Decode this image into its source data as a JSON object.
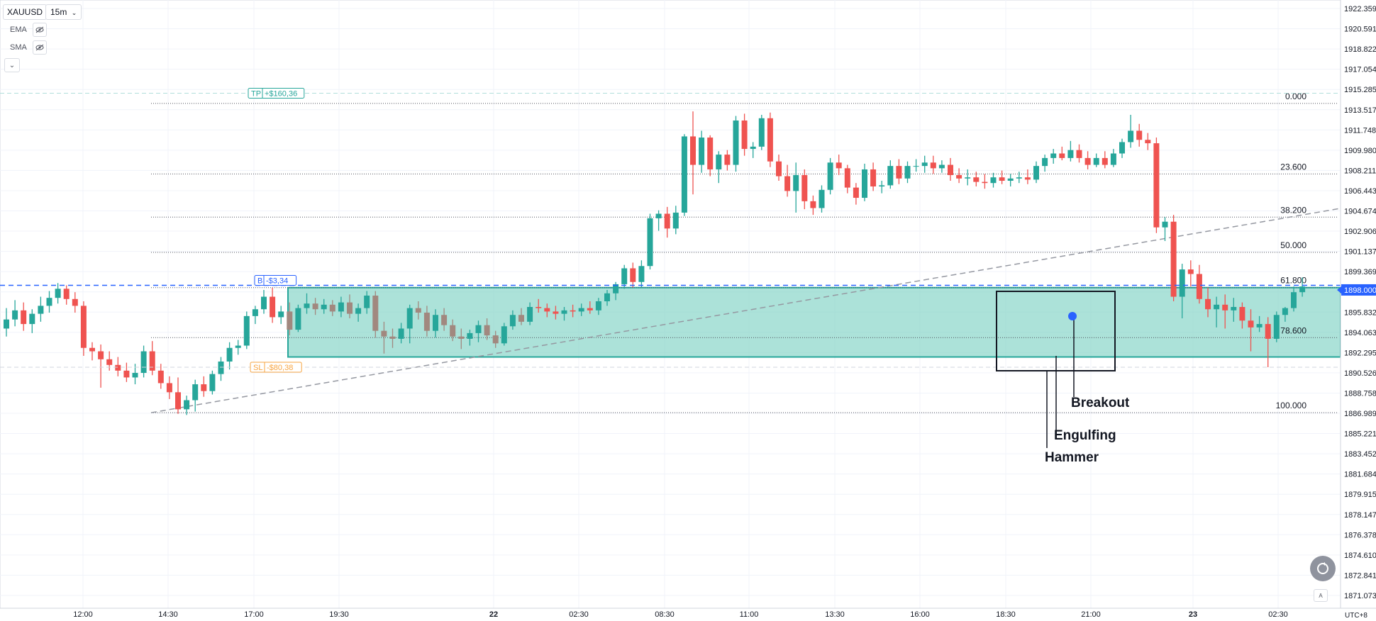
{
  "toolbar": {
    "symbol": "XAUUSD",
    "timeframe": "15m",
    "indicators": [
      {
        "label": "EMA",
        "icon": "eye-off-icon"
      },
      {
        "label": "SMA",
        "icon": "eye-off-icon"
      }
    ],
    "collapse_icon": "chevron-down-icon"
  },
  "timezone_label": "UTC+8",
  "auto_scale_label": "A",
  "colors": {
    "up": "#26a69a",
    "down": "#ef5350",
    "zone_fill": "#7fd3c5",
    "zone_stroke": "#26a69a",
    "entry_line": "#2962ff",
    "price_tag": "#2962ff",
    "tp_color": "#26a69a",
    "sl_color": "#f7a440",
    "grid": "#f0f3fa",
    "text": "#131722"
  },
  "chart_data": {
    "type": "candlestick",
    "symbol": "XAUUSD",
    "interval": "15m",
    "ylim": [
      1870.5,
      1923.0
    ],
    "price_axis_ticks": [
      "1922.359",
      "1920.591",
      "1918.822",
      "1917.054",
      "1915.285",
      "1913.517",
      "1911.748",
      "1909.980",
      "1908.211",
      "1906.443",
      "1904.674",
      "1902.906",
      "1901.137",
      "1899.369",
      "1897.600",
      "1895.832",
      "1894.063",
      "1892.295",
      "1890.526",
      "1888.758",
      "1886.989",
      "1885.221",
      "1883.452",
      "1881.684",
      "1879.915",
      "1878.147",
      "1876.378",
      "1874.610",
      "1872.841",
      "1871.073"
    ],
    "current_price_label": "1898.000",
    "time_axis_labels": [
      "12:00",
      "14:30",
      "17:00",
      "19:30",
      "22",
      "02:30",
      "08:30",
      "11:00",
      "13:30",
      "16:00",
      "18:30",
      "21:00",
      "23",
      "02:30"
    ],
    "candles": [
      [
        1894.6,
        1896.4,
        1893.9,
        1895.4
      ],
      [
        1895.4,
        1897.1,
        1894.8,
        1896.2
      ],
      [
        1896.2,
        1896.9,
        1894.4,
        1895.0
      ],
      [
        1895.0,
        1896.3,
        1894.2,
        1895.9
      ],
      [
        1895.9,
        1897.4,
        1895.2,
        1896.6
      ],
      [
        1896.6,
        1897.9,
        1896.0,
        1897.3
      ],
      [
        1897.3,
        1898.6,
        1896.8,
        1898.1
      ],
      [
        1898.1,
        1898.4,
        1896.7,
        1897.2
      ],
      [
        1897.2,
        1897.8,
        1896.0,
        1896.6
      ],
      [
        1896.6,
        1897.0,
        1892.2,
        1892.9
      ],
      [
        1892.9,
        1893.4,
        1891.8,
        1892.6
      ],
      [
        1892.6,
        1893.2,
        1889.4,
        1891.9
      ],
      [
        1891.9,
        1892.6,
        1890.9,
        1891.4
      ],
      [
        1891.4,
        1892.1,
        1890.4,
        1890.9
      ],
      [
        1890.9,
        1891.6,
        1889.9,
        1890.3
      ],
      [
        1890.3,
        1891.5,
        1889.7,
        1890.7
      ],
      [
        1890.7,
        1893.1,
        1890.3,
        1892.6
      ],
      [
        1892.6,
        1893.5,
        1890.5,
        1890.9
      ],
      [
        1890.9,
        1891.5,
        1889.3,
        1889.8
      ],
      [
        1889.8,
        1890.4,
        1888.4,
        1889.0
      ],
      [
        1889.0,
        1890.3,
        1887.1,
        1887.5
      ],
      [
        1887.5,
        1888.7,
        1887.0,
        1888.3
      ],
      [
        1888.3,
        1890.1,
        1887.3,
        1889.7
      ],
      [
        1889.7,
        1890.4,
        1888.6,
        1889.1
      ],
      [
        1889.1,
        1890.9,
        1888.8,
        1890.6
      ],
      [
        1890.6,
        1892.1,
        1890.0,
        1891.7
      ],
      [
        1891.7,
        1893.4,
        1891.0,
        1892.9
      ],
      [
        1892.9,
        1893.6,
        1892.3,
        1893.1
      ],
      [
        1893.1,
        1896.1,
        1892.8,
        1895.7
      ],
      [
        1895.7,
        1896.6,
        1895.0,
        1896.3
      ],
      [
        1896.3,
        1898.0,
        1895.9,
        1897.4
      ],
      [
        1897.4,
        1898.2,
        1895.1,
        1895.6
      ],
      [
        1895.6,
        1896.6,
        1895.0,
        1896.1
      ],
      [
        1896.1,
        1896.9,
        1894.0,
        1894.5
      ],
      [
        1894.5,
        1896.7,
        1894.3,
        1896.4
      ],
      [
        1896.4,
        1897.7,
        1895.9,
        1896.8
      ],
      [
        1896.8,
        1897.3,
        1895.8,
        1896.3
      ],
      [
        1896.3,
        1897.2,
        1895.9,
        1896.7
      ],
      [
        1896.7,
        1897.1,
        1895.7,
        1896.1
      ],
      [
        1896.1,
        1897.4,
        1895.6,
        1896.9
      ],
      [
        1896.9,
        1897.6,
        1895.5,
        1895.9
      ],
      [
        1895.9,
        1896.8,
        1895.2,
        1896.4
      ],
      [
        1896.4,
        1897.9,
        1895.9,
        1897.5
      ],
      [
        1897.5,
        1897.9,
        1893.8,
        1894.4
      ],
      [
        1894.4,
        1895.2,
        1892.4,
        1893.9
      ],
      [
        1893.9,
        1894.6,
        1892.9,
        1893.7
      ],
      [
        1893.7,
        1895.1,
        1893.3,
        1894.6
      ],
      [
        1894.6,
        1896.7,
        1893.3,
        1896.4
      ],
      [
        1896.4,
        1897.0,
        1895.4,
        1896.0
      ],
      [
        1896.0,
        1896.6,
        1893.9,
        1894.4
      ],
      [
        1894.4,
        1896.3,
        1893.8,
        1895.8
      ],
      [
        1895.8,
        1896.4,
        1894.4,
        1894.9
      ],
      [
        1894.9,
        1895.4,
        1893.5,
        1893.9
      ],
      [
        1893.9,
        1894.6,
        1892.8,
        1893.7
      ],
      [
        1893.7,
        1894.5,
        1893.1,
        1894.2
      ],
      [
        1894.2,
        1895.3,
        1893.4,
        1894.9
      ],
      [
        1894.9,
        1895.5,
        1893.6,
        1894.0
      ],
      [
        1894.0,
        1894.4,
        1892.9,
        1893.3
      ],
      [
        1893.3,
        1895.1,
        1893.1,
        1894.8
      ],
      [
        1894.8,
        1896.2,
        1894.5,
        1895.8
      ],
      [
        1895.8,
        1896.4,
        1894.9,
        1895.2
      ],
      [
        1895.2,
        1896.9,
        1894.9,
        1896.5
      ],
      [
        1896.5,
        1897.2,
        1896.0,
        1896.4
      ],
      [
        1896.4,
        1896.8,
        1895.6,
        1896.1
      ],
      [
        1896.1,
        1896.6,
        1895.4,
        1895.9
      ],
      [
        1895.9,
        1896.5,
        1895.3,
        1896.2
      ],
      [
        1896.2,
        1896.7,
        1895.6,
        1896.1
      ],
      [
        1896.1,
        1896.8,
        1895.7,
        1896.4
      ],
      [
        1896.4,
        1897.0,
        1895.9,
        1896.2
      ],
      [
        1896.2,
        1897.3,
        1895.8,
        1897.0
      ],
      [
        1897.0,
        1898.0,
        1896.6,
        1897.7
      ],
      [
        1897.7,
        1898.7,
        1897.1,
        1898.5
      ],
      [
        1898.5,
        1900.2,
        1898.1,
        1899.9
      ],
      [
        1899.9,
        1900.4,
        1898.2,
        1898.7
      ],
      [
        1898.7,
        1900.6,
        1898.2,
        1900.1
      ],
      [
        1900.1,
        1904.7,
        1899.8,
        1904.3
      ],
      [
        1904.3,
        1905.0,
        1903.2,
        1904.7
      ],
      [
        1904.7,
        1905.3,
        1902.6,
        1903.4
      ],
      [
        1903.4,
        1905.4,
        1902.9,
        1904.8
      ],
      [
        1904.8,
        1911.7,
        1904.5,
        1911.5
      ],
      [
        1911.5,
        1913.7,
        1906.4,
        1909.0
      ],
      [
        1909.0,
        1912.0,
        1908.3,
        1911.4
      ],
      [
        1911.4,
        1911.6,
        1908.0,
        1908.6
      ],
      [
        1908.6,
        1910.2,
        1907.4,
        1909.9
      ],
      [
        1909.9,
        1910.3,
        1908.5,
        1909.0
      ],
      [
        1909.0,
        1913.3,
        1908.4,
        1912.9
      ],
      [
        1912.9,
        1913.5,
        1909.8,
        1910.4
      ],
      [
        1910.4,
        1911.0,
        1909.6,
        1910.6
      ],
      [
        1910.6,
        1913.4,
        1910.3,
        1913.1
      ],
      [
        1913.1,
        1913.6,
        1908.8,
        1909.3
      ],
      [
        1909.3,
        1909.9,
        1907.6,
        1908.0
      ],
      [
        1908.0,
        1909.0,
        1906.2,
        1906.7
      ],
      [
        1906.7,
        1909.2,
        1904.8,
        1908.1
      ],
      [
        1908.1,
        1908.6,
        1905.1,
        1905.8
      ],
      [
        1905.8,
        1906.3,
        1904.6,
        1905.2
      ],
      [
        1905.2,
        1907.2,
        1904.8,
        1906.8
      ],
      [
        1906.8,
        1909.6,
        1906.4,
        1909.2
      ],
      [
        1909.2,
        1909.9,
        1908.1,
        1908.7
      ],
      [
        1908.7,
        1909.0,
        1906.5,
        1907.0
      ],
      [
        1907.0,
        1907.4,
        1905.5,
        1906.1
      ],
      [
        1906.1,
        1909.1,
        1905.8,
        1908.6
      ],
      [
        1908.6,
        1909.2,
        1906.7,
        1907.1
      ],
      [
        1907.1,
        1907.6,
        1906.5,
        1907.2
      ],
      [
        1907.2,
        1909.4,
        1906.9,
        1908.9
      ],
      [
        1908.9,
        1909.5,
        1907.3,
        1907.8
      ],
      [
        1907.8,
        1909.3,
        1907.4,
        1908.9
      ],
      [
        1908.9,
        1909.5,
        1908.4,
        1908.9
      ],
      [
        1908.9,
        1909.8,
        1908.3,
        1909.2
      ],
      [
        1909.2,
        1909.8,
        1908.2,
        1908.7
      ],
      [
        1908.7,
        1909.4,
        1908.3,
        1909.0
      ],
      [
        1909.0,
        1909.6,
        1907.6,
        1908.1
      ],
      [
        1908.1,
        1908.7,
        1907.4,
        1907.8
      ],
      [
        1907.8,
        1908.6,
        1907.2,
        1907.9
      ],
      [
        1907.9,
        1908.4,
        1907.1,
        1907.5
      ],
      [
        1907.5,
        1908.2,
        1906.9,
        1907.4
      ],
      [
        1907.4,
        1908.3,
        1907.0,
        1907.9
      ],
      [
        1907.9,
        1908.5,
        1907.3,
        1907.6
      ],
      [
        1907.6,
        1908.2,
        1907.1,
        1907.8
      ],
      [
        1907.8,
        1908.4,
        1907.4,
        1907.9
      ],
      [
        1907.9,
        1908.6,
        1907.3,
        1907.7
      ],
      [
        1907.7,
        1909.3,
        1907.4,
        1908.9
      ],
      [
        1908.9,
        1909.9,
        1908.4,
        1909.6
      ],
      [
        1909.6,
        1910.4,
        1909.1,
        1910.0
      ],
      [
        1910.0,
        1910.6,
        1909.4,
        1909.6
      ],
      [
        1909.6,
        1911.1,
        1909.3,
        1910.3
      ],
      [
        1910.3,
        1910.8,
        1909.2,
        1909.6
      ],
      [
        1909.6,
        1910.2,
        1908.6,
        1909.0
      ],
      [
        1909.0,
        1910.0,
        1908.8,
        1909.6
      ],
      [
        1909.6,
        1910.2,
        1908.7,
        1909.0
      ],
      [
        1909.0,
        1910.4,
        1908.8,
        1910.0
      ],
      [
        1910.0,
        1911.3,
        1909.6,
        1911.0
      ],
      [
        1911.0,
        1913.4,
        1910.5,
        1912.0
      ],
      [
        1912.0,
        1912.6,
        1910.6,
        1911.2
      ],
      [
        1911.2,
        1911.8,
        1910.3,
        1910.9
      ],
      [
        1910.9,
        1911.4,
        1903.0,
        1903.5
      ],
      [
        1903.5,
        1904.4,
        1902.3,
        1904.0
      ],
      [
        1904.0,
        1904.6,
        1897.0,
        1897.4
      ],
      [
        1897.4,
        1900.3,
        1895.5,
        1899.8
      ],
      [
        1899.8,
        1900.6,
        1898.3,
        1899.4
      ],
      [
        1899.4,
        1900.2,
        1896.8,
        1897.2
      ],
      [
        1897.2,
        1898.2,
        1895.6,
        1896.3
      ],
      [
        1896.3,
        1897.4,
        1894.7,
        1896.7
      ],
      [
        1896.7,
        1897.6,
        1894.6,
        1896.2
      ],
      [
        1896.2,
        1897.3,
        1895.2,
        1896.5
      ],
      [
        1896.5,
        1896.9,
        1894.6,
        1895.3
      ],
      [
        1895.3,
        1896.3,
        1892.6,
        1894.7
      ],
      [
        1894.7,
        1895.7,
        1894.3,
        1895.0
      ],
      [
        1895.0,
        1895.6,
        1891.2,
        1893.7
      ],
      [
        1893.7,
        1896.1,
        1893.4,
        1895.8
      ],
      [
        1895.8,
        1896.5,
        1895.2,
        1896.4
      ],
      [
        1896.4,
        1898.3,
        1896.1,
        1897.8
      ],
      [
        1897.8,
        1899.1,
        1897.4,
        1898.3
      ]
    ],
    "bbox_hidden_series_note": "",
    "horizontal_levels": [
      {
        "label": "0.000",
        "price": 1914.4
      },
      {
        "label": "23.600",
        "price": 1908.2
      },
      {
        "label": "38.200",
        "price": 1904.4
      },
      {
        "label": "50.000",
        "price": 1901.3
      },
      {
        "label": "61.800",
        "price": 1898.2
      },
      {
        "label": "78.600",
        "price": 1893.8
      },
      {
        "label": "100.000",
        "price": 1887.2
      }
    ],
    "position": {
      "tp": {
        "tag": "TP",
        "value": "+$160,36",
        "price": 1915.3
      },
      "entry": {
        "tag": "B",
        "value": "-$3,34",
        "price": 1898.4
      },
      "sl": {
        "tag": "SL",
        "value": "-$80,38",
        "price": 1891.2
      }
    },
    "zone": {
      "top": 1898.2,
      "bottom": 1892.1
    },
    "trendline": {
      "from_price": 1887.2,
      "to_price": 1905.6
    },
    "annotations": [
      "Breakout",
      "Engulfing",
      "Hammer"
    ]
  }
}
